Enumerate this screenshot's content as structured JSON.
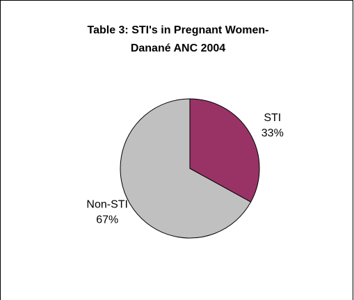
{
  "chart_data": {
    "type": "pie",
    "title": [
      "Table 3: STI's in Pregnant Women-",
      "Danané ANC 2004"
    ],
    "categories": [
      "STI",
      "Non-STI"
    ],
    "values": [
      33,
      67
    ],
    "value_labels": [
      "33%",
      "67%"
    ],
    "colors": [
      "#993366",
      "#c0c0c0"
    ]
  }
}
